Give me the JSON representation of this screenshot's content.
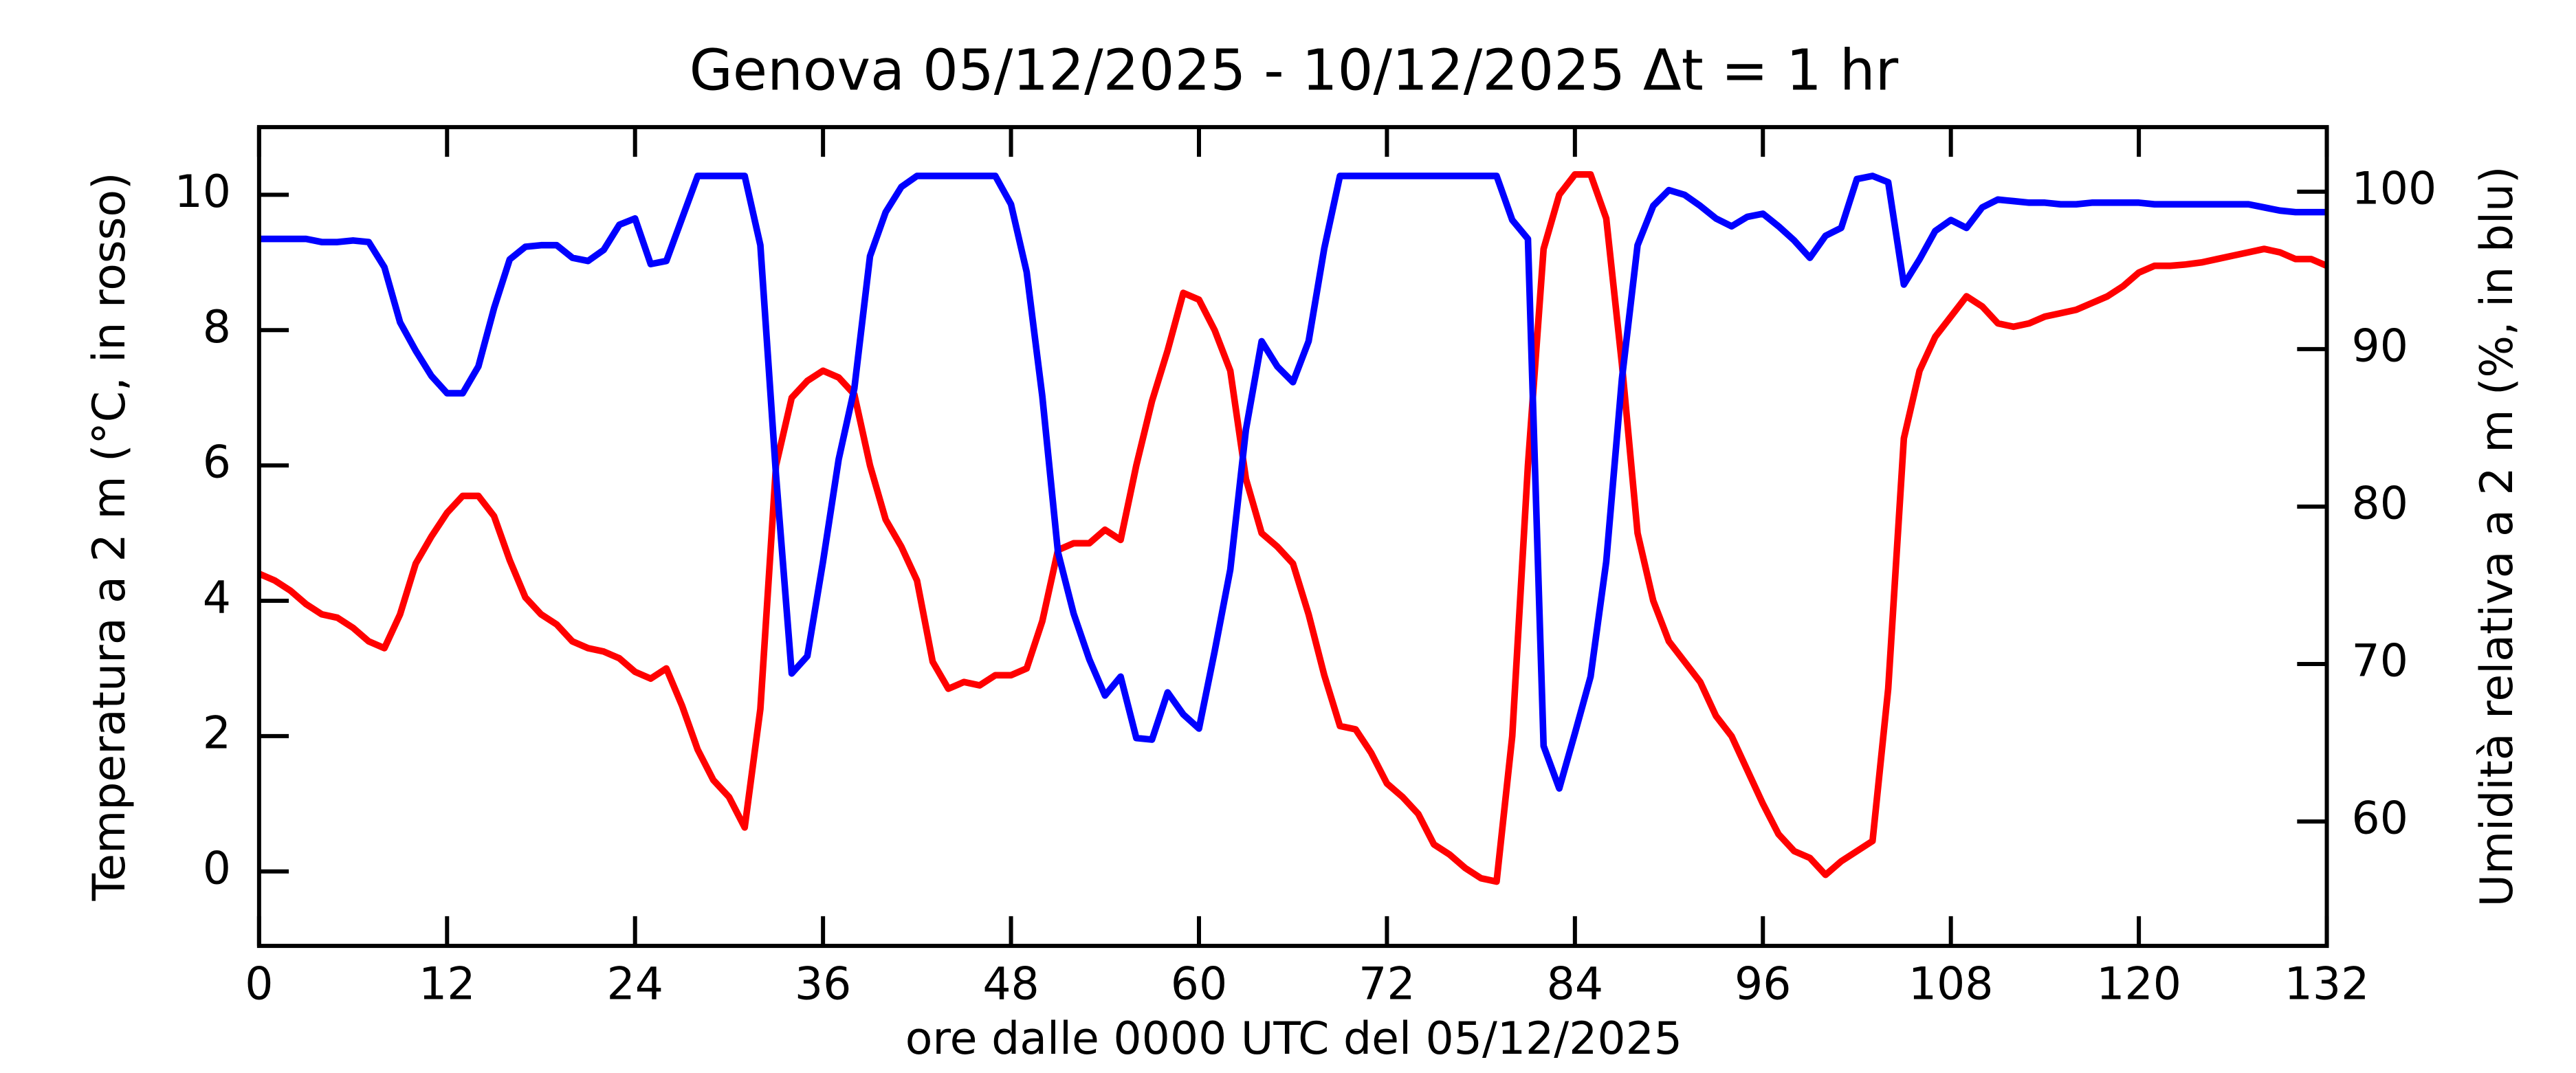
{
  "chart_data": {
    "type": "line",
    "title": "Genova   05/12/2025 - 10/12/2025   Δt = 1 hr",
    "x_label": "ore dalle 0000 UTC del 05/12/2025",
    "y_label": "Temperatura a 2 m (°C, in rosso)",
    "y2_label": "Umidità relativa a 2 m (%, in blu)",
    "xlim": [
      0,
      132
    ],
    "xticks": [
      0,
      12,
      24,
      36,
      48,
      60,
      72,
      84,
      96,
      108,
      120,
      132
    ],
    "ylim": [
      -1.1,
      11
    ],
    "yticks": [
      0,
      2,
      4,
      6,
      8,
      10
    ],
    "y2lim": [
      52.1,
      104.1
    ],
    "y2ticks": [
      60,
      70,
      80,
      90,
      100
    ],
    "x": [
      0,
      1,
      2,
      3,
      4,
      5,
      6,
      7,
      8,
      9,
      10,
      11,
      12,
      13,
      14,
      15,
      16,
      17,
      18,
      19,
      20,
      21,
      22,
      23,
      24,
      25,
      26,
      27,
      28,
      29,
      30,
      31,
      32,
      33,
      34,
      35,
      36,
      37,
      38,
      39,
      40,
      41,
      42,
      43,
      44,
      45,
      46,
      47,
      48,
      49,
      50,
      51,
      52,
      53,
      54,
      55,
      56,
      57,
      58,
      59,
      60,
      61,
      62,
      63,
      64,
      65,
      66,
      67,
      68,
      69,
      70,
      71,
      72,
      73,
      74,
      75,
      76,
      77,
      78,
      79,
      80,
      81,
      82,
      83,
      84,
      85,
      86,
      87,
      88,
      89,
      90,
      91,
      92,
      93,
      94,
      95,
      96,
      97,
      98,
      99,
      100,
      101,
      102,
      103,
      104,
      105,
      106,
      107,
      108,
      109,
      110,
      111,
      112,
      113,
      114,
      115,
      116,
      117,
      118,
      119,
      120,
      121,
      122,
      123,
      124,
      125,
      126,
      127,
      128,
      129,
      130,
      131,
      132
    ],
    "series": [
      {
        "name": "Temperatura",
        "color": "#ff0000",
        "axis": "y",
        "values": [
          4.4,
          4.3,
          4.15,
          3.95,
          3.8,
          3.75,
          3.6,
          3.4,
          3.3,
          3.8,
          4.55,
          4.95,
          5.3,
          5.55,
          5.55,
          5.25,
          4.6,
          4.05,
          3.8,
          3.65,
          3.4,
          3.3,
          3.25,
          3.15,
          2.95,
          2.85,
          3.0,
          2.45,
          1.8,
          1.35,
          1.1,
          0.65,
          2.4,
          6.0,
          7.0,
          7.25,
          7.4,
          7.3,
          7.05,
          6.0,
          5.2,
          4.8,
          4.3,
          3.1,
          2.7,
          2.8,
          2.75,
          2.9,
          2.9,
          3.0,
          3.7,
          4.75,
          4.85,
          4.85,
          5.05,
          4.9,
          6.0,
          6.95,
          7.7,
          8.55,
          8.45,
          8.0,
          7.4,
          5.8,
          5.0,
          4.8,
          4.55,
          3.8,
          2.9,
          2.15,
          2.1,
          1.75,
          1.3,
          1.1,
          0.85,
          0.4,
          0.25,
          0.05,
          -0.1,
          -0.15,
          2.0,
          6.0,
          9.2,
          10.0,
          10.3,
          10.3,
          9.65,
          7.5,
          5.0,
          4.0,
          3.4,
          3.1,
          2.8,
          2.3,
          2.0,
          1.5,
          1.0,
          0.55,
          0.3,
          0.2,
          -0.05,
          0.15,
          0.3,
          0.45,
          2.7,
          6.4,
          7.4,
          7.9,
          8.2,
          8.5,
          8.35,
          8.1,
          8.05,
          8.1,
          8.2,
          8.25,
          8.3,
          8.4,
          8.5,
          8.65,
          8.85,
          8.95,
          8.95,
          8.97,
          9.0,
          9.05,
          9.1,
          9.15,
          9.2,
          9.15,
          9.05,
          9.05,
          8.95
        ]
      },
      {
        "name": "Umidità",
        "color": "#0000ff",
        "axis": "y2",
        "values": [
          97.0,
          97.0,
          97.0,
          97.0,
          96.8,
          96.8,
          96.9,
          96.8,
          95.2,
          91.7,
          89.9,
          88.3,
          87.2,
          87.2,
          88.9,
          92.6,
          95.7,
          96.5,
          96.6,
          96.6,
          95.8,
          95.6,
          96.3,
          97.9,
          98.3,
          95.4,
          95.6,
          98.3,
          101,
          101,
          101,
          101,
          96.6,
          82,
          69.4,
          70.5,
          76.5,
          83.0,
          87.5,
          95.9,
          98.7,
          100.3,
          101,
          101,
          101,
          101,
          101,
          101,
          99.2,
          94.9,
          87.0,
          77.1,
          73.2,
          70.3,
          68.0,
          69.2,
          65.3,
          65.2,
          68.2,
          66.8,
          65.9,
          70.8,
          76.0,
          84.9,
          90.5,
          88.9,
          87.9,
          90.5,
          96.4,
          101,
          101,
          101,
          101,
          101,
          101,
          101,
          101,
          101,
          101,
          101,
          98.2,
          97.0,
          64.8,
          62.1,
          65.6,
          69.2,
          76.5,
          88.1,
          96.6,
          99.1,
          100.1,
          99.8,
          99.1,
          98.3,
          97.8,
          98.4,
          98.6,
          97.8,
          96.9,
          95.8,
          97.2,
          97.7,
          100.8,
          101,
          100.6,
          94.1,
          95.7,
          97.5,
          98.2,
          97.7,
          99.0,
          99.5,
          99.4,
          99.3,
          99.3,
          99.2,
          99.2,
          99.3,
          99.3,
          99.3,
          99.3,
          99.2,
          99.2,
          99.2,
          99.2,
          99.2,
          99.2,
          99.2,
          99.0,
          98.8,
          98.7,
          98.7,
          98.7
        ]
      }
    ]
  }
}
